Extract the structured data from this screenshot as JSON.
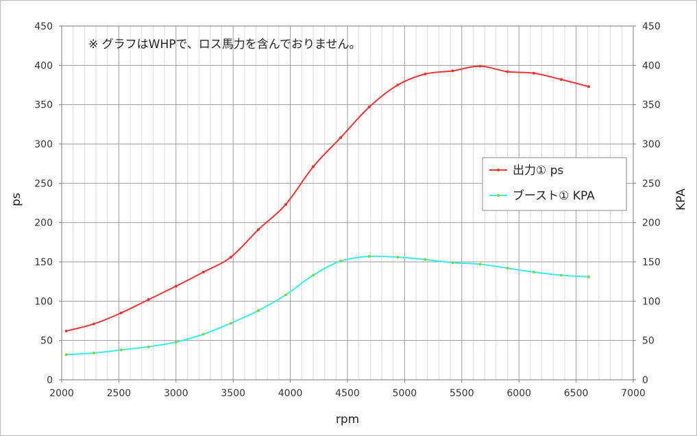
{
  "chart_data": {
    "type": "line",
    "annotation": "※ グラフはWHPで、ロス馬力を含んでおりません。",
    "xlabel": "rpm",
    "ylabel": "ps",
    "y2label": "KPA",
    "xlim": [
      2000,
      7000
    ],
    "ylim": [
      0,
      450
    ],
    "y2lim": [
      0,
      450
    ],
    "x_ticks": [
      2000,
      2500,
      3000,
      3500,
      4000,
      4500,
      5000,
      5500,
      6000,
      6500,
      7000
    ],
    "y_ticks": [
      0,
      50,
      100,
      150,
      200,
      250,
      300,
      350,
      400,
      450
    ],
    "grid": true,
    "legend_position": "right",
    "series": [
      {
        "name": "出力① ps",
        "axis": "left",
        "color": "#ee3333",
        "marker_color": "#ee3333",
        "x": [
          2040,
          2280,
          2520,
          2760,
          3000,
          3240,
          3480,
          3720,
          3960,
          4200,
          4440,
          4690,
          4940,
          5180,
          5420,
          5660,
          5900,
          6130,
          6370,
          6610
        ],
        "y": [
          62,
          71,
          85,
          102,
          119,
          137,
          156,
          191,
          223,
          271,
          308,
          347,
          375,
          389,
          393,
          399,
          392,
          390,
          382,
          373
        ]
      },
      {
        "name": "ブースト① KPA",
        "axis": "right",
        "color": "#33eeee",
        "marker_color": "#99cc33",
        "x": [
          2040,
          2280,
          2520,
          2760,
          3000,
          3240,
          3480,
          3720,
          3960,
          4200,
          4440,
          4690,
          4940,
          5180,
          5420,
          5660,
          5900,
          6130,
          6370,
          6610
        ],
        "y": [
          32,
          34,
          38,
          42,
          48,
          58,
          72,
          88,
          108,
          133,
          151,
          157,
          156,
          153,
          149,
          147,
          142,
          137,
          133,
          131
        ]
      }
    ]
  }
}
